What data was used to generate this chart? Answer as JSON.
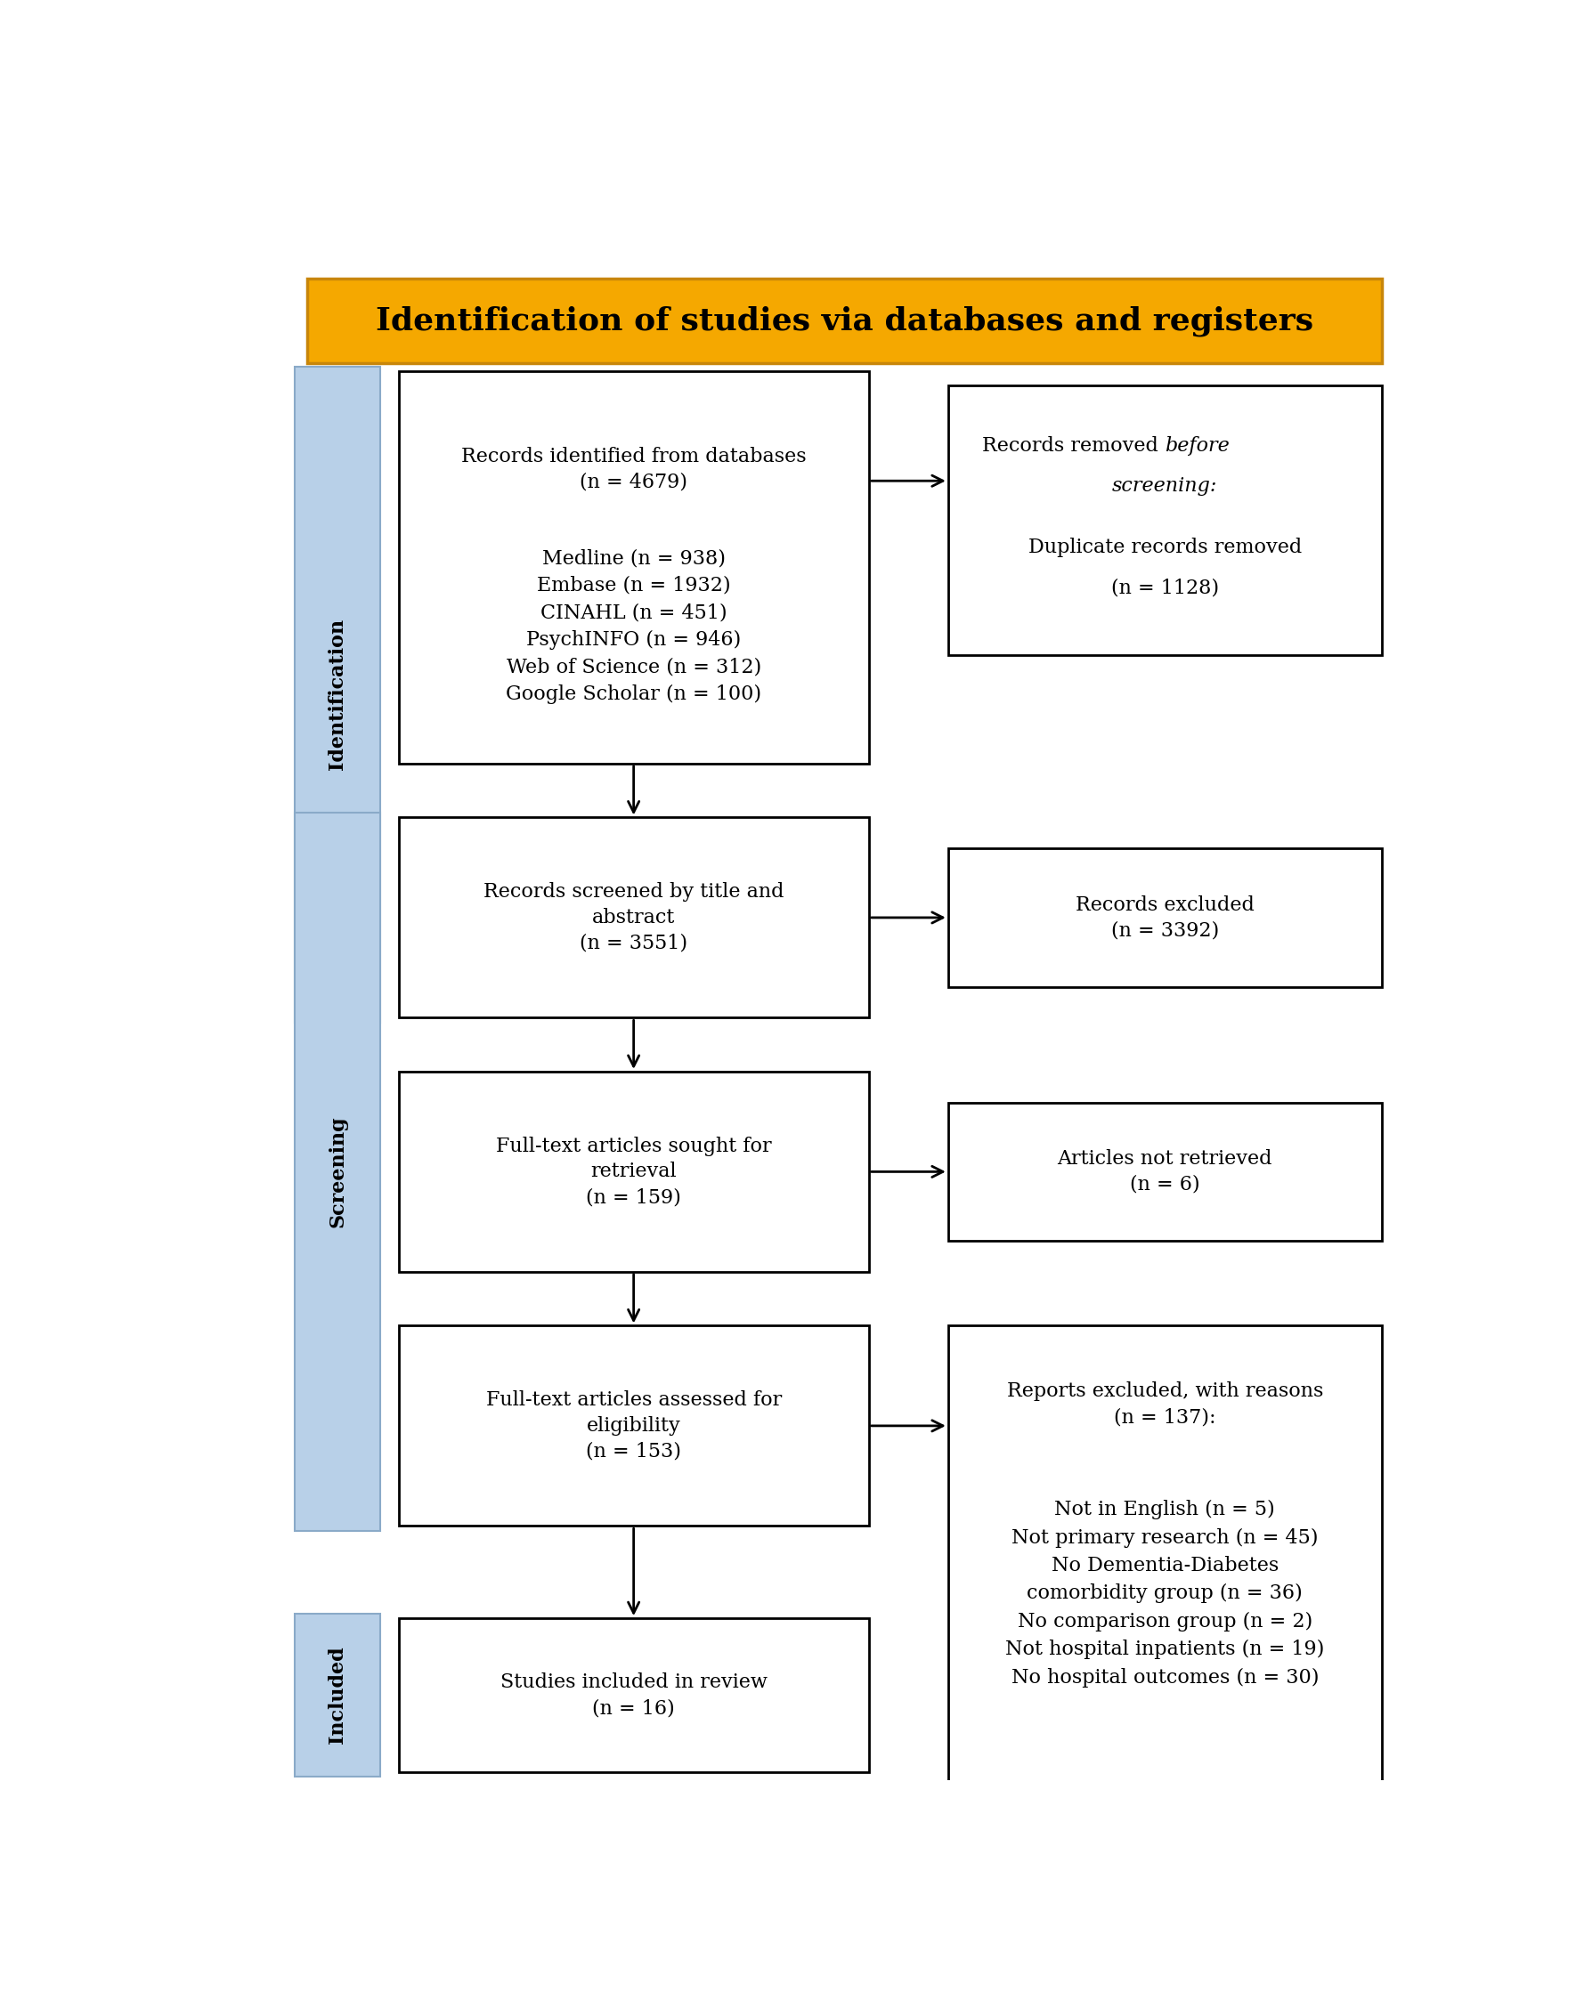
{
  "title": "Identification of studies via databases and registers",
  "title_bg": "#F5A800",
  "title_border": "#C8860A",
  "title_fg": "#000000",
  "box_border": "#000000",
  "box_bg": "#FFFFFF",
  "sidebar_color": "#B8D0E8",
  "sidebar_border": "#8AAAC8",
  "sidebar_labels": [
    "Identification",
    "Screening",
    "Included"
  ],
  "font_size_title": 26,
  "font_size_box": 16,
  "font_size_sidebar": 16,
  "box1_text_top": "Records identified from databases\n(n = 4679)",
  "box1_text_bottom": "Medline (n = 938)\nEmbase (n = 1932)\nCINAHL (n = 451)\nPsychINFO (n = 946)\nWeb of Science (n = 312)\nGoogle Scholar (n = 100)",
  "box2_line1": "Records removed ",
  "box2_line1_italic": "before",
  "box2_line2_italic": "screening:",
  "box2_line3": "Duplicate records removed",
  "box2_line4": "(n = 1128)",
  "box3_text": "Records screened by title and\nabstract\n(n = 3551)",
  "box4_text": "Records excluded\n(n = 3392)",
  "box5_text": "Full-text articles sought for\nretrieval\n(n = 159)",
  "box6_text": "Articles not retrieved\n(n = 6)",
  "box7_text": "Full-text articles assessed for\neligibility\n(n = 153)",
  "box8_text_top": "Reports excluded, with reasons\n(n = 137):",
  "box8_text_bottom": "Not in English (n = 5)\nNot primary research (n = 45)\nNo Dementia-Diabetes\ncomorbidity group (n = 36)\nNo comparison group (n = 2)\nNot hospital inpatients (n = 19)\nNo hospital outcomes (n = 30)",
  "box9_text": "Studies included in review\n(n = 16)"
}
